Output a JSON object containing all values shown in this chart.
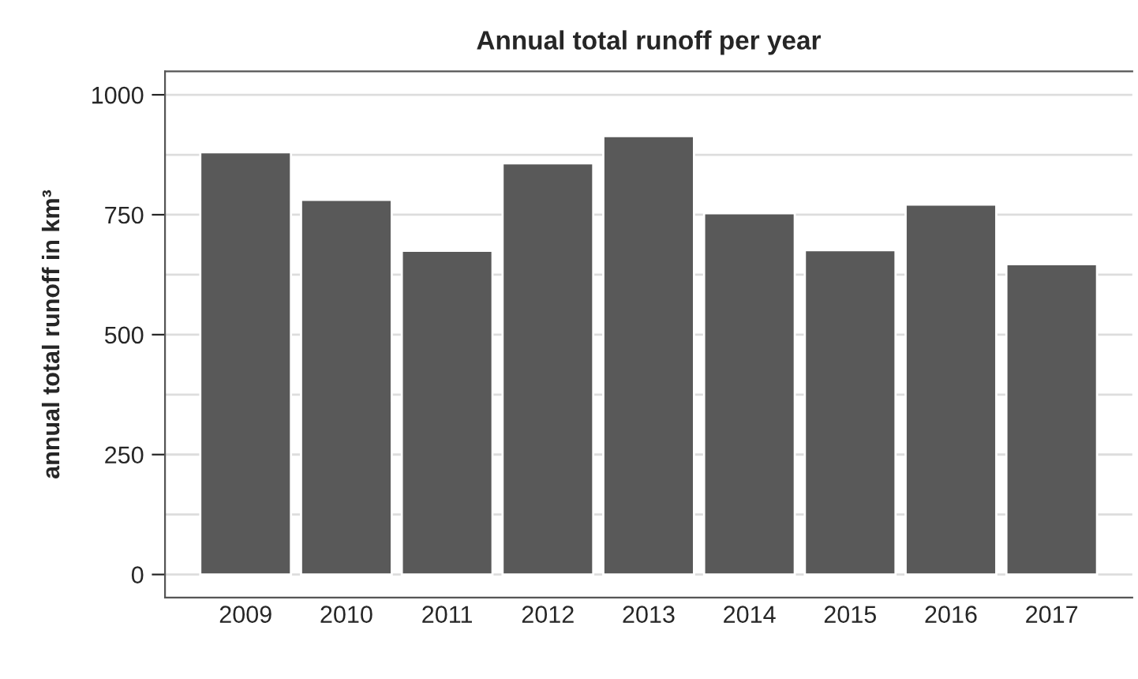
{
  "chart_data": {
    "type": "bar",
    "title": "Annual total runoff per year",
    "ylabel": "annual total runoff in km³",
    "categories": [
      "2009",
      "2010",
      "2011",
      "2012",
      "2013",
      "2014",
      "2015",
      "2016",
      "2017"
    ],
    "values": [
      880,
      781,
      675,
      857,
      914,
      753,
      676,
      771,
      647
    ],
    "color": "#595959",
    "ylim": [
      -48,
      1049
    ],
    "yticks": [
      0,
      {
        "value": 125,
        "label": null
      },
      250,
      {
        "value": 375,
        "label": null
      },
      500,
      {
        "value": 625,
        "label": null
      },
      750,
      {
        "value": 875,
        "label": null
      },
      1000
    ],
    "grid": "y",
    "legend": false
  }
}
